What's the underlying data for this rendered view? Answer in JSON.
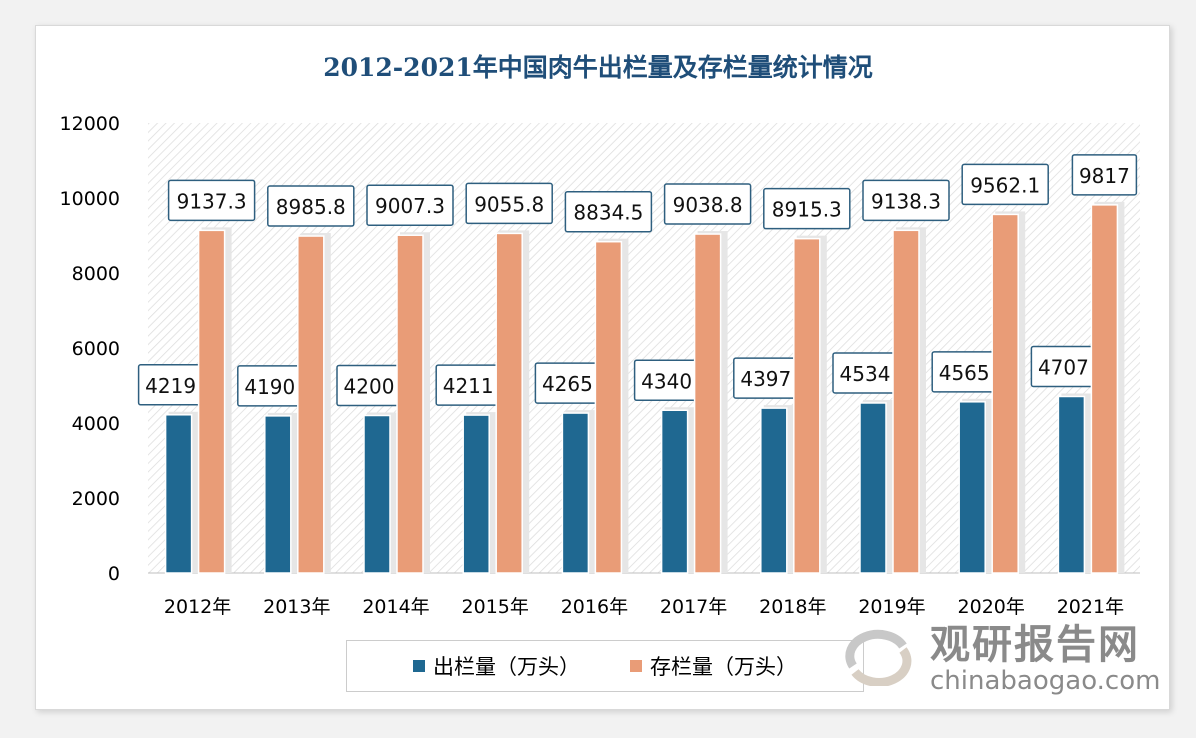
{
  "chart_data": {
    "type": "bar",
    "title": "2012-2021年中国肉牛出栏量及存栏量统计情况",
    "categories": [
      "2012年",
      "2013年",
      "2014年",
      "2015年",
      "2016年",
      "2017年",
      "2018年",
      "2019年",
      "2020年",
      "2021年"
    ],
    "series": [
      {
        "name": "出栏量（万头）",
        "color": "#1f6891",
        "values": [
          4219,
          4190,
          4200,
          4211,
          4265,
          4340,
          4397,
          4534,
          4565,
          4707
        ],
        "labels": [
          "4219",
          "4190",
          "4200",
          "4211",
          "4265",
          "4340",
          "4397",
          "4534",
          "4565",
          "4707"
        ]
      },
      {
        "name": "存栏量（万头）",
        "color": "#e99c77",
        "values": [
          9137.3,
          8985.8,
          9007.3,
          9055.8,
          8834.5,
          9038.8,
          8915.3,
          9138.3,
          9562.1,
          9817
        ],
        "labels": [
          "9137.3",
          "8985.8",
          "9007.3",
          "9055.8",
          "8834.5",
          "9038.8",
          "8915.3",
          "9138.3",
          "9562.1",
          "9817"
        ]
      }
    ],
    "yticks": [
      "0",
      "2000",
      "4000",
      "6000",
      "8000",
      "10000",
      "12000"
    ],
    "ylim": [
      0,
      12000
    ],
    "xlabel": "",
    "ylabel": "",
    "grid": false,
    "legend": "bottom"
  },
  "watermark": {
    "cn": "观研报告网",
    "en": "chinabaogao.com"
  }
}
